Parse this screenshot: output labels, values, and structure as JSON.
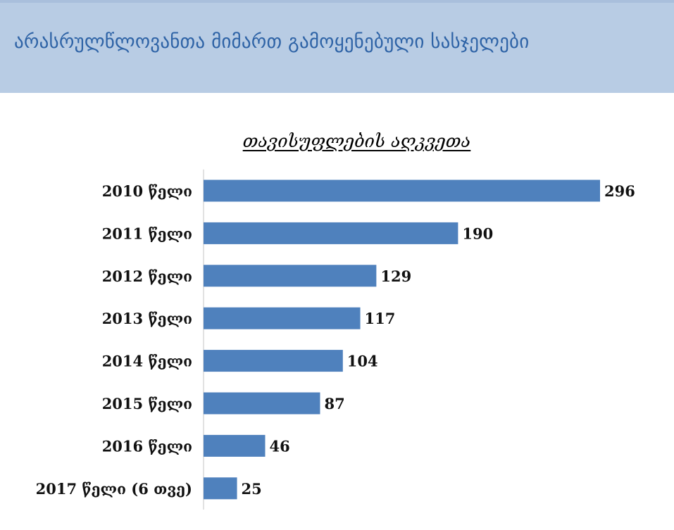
{
  "header": {
    "title": "არასრულწლოვანთა მიმართ გამოყენებული სასჯელები"
  },
  "chart_data": {
    "type": "bar",
    "orientation": "horizontal",
    "title": "თავისუფლების აღკვეთა",
    "categories": [
      "2010 წელი",
      "2011 წელი",
      "2012 წელი",
      "2013 წელი",
      "2014 წელი",
      "2015 წელი",
      "2016 წელი",
      "2017 წელი (6 თვე)"
    ],
    "values": [
      296,
      190,
      129,
      117,
      104,
      87,
      46,
      25
    ],
    "xlim": [
      0,
      296
    ],
    "grid": false,
    "bar_color": "#4f81bd"
  }
}
